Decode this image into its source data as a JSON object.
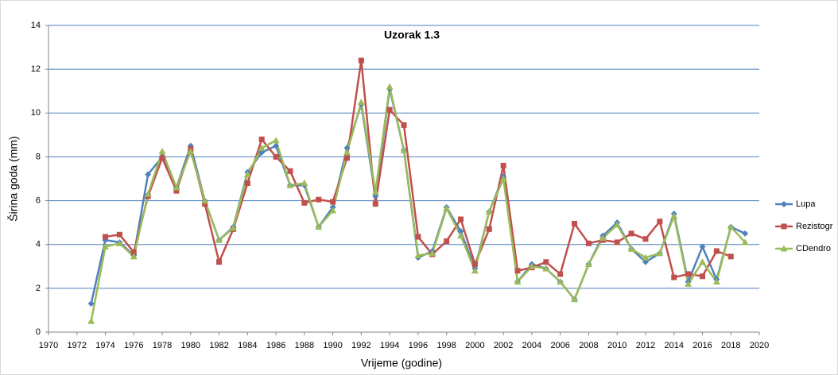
{
  "chart_data": {
    "type": "line",
    "title": "Uzorak 1.3",
    "x_label": "Vrijeme (godine)",
    "y_label": "Širina goda (mm)",
    "x": [
      1973,
      1974,
      1975,
      1976,
      1977,
      1978,
      1979,
      1980,
      1981,
      1982,
      1983,
      1984,
      1985,
      1986,
      1987,
      1988,
      1989,
      1990,
      1991,
      1992,
      1993,
      1994,
      1995,
      1996,
      1997,
      1998,
      1999,
      2000,
      2001,
      2002,
      2003,
      2004,
      2005,
      2006,
      2007,
      2008,
      2009,
      2010,
      2011,
      2012,
      2013,
      2014,
      2015,
      2016,
      2017,
      2018,
      2019
    ],
    "series": [
      {
        "name": "Lupa",
        "color": "#4f81bd",
        "marker": "diamond",
        "values": [
          1.3,
          4.2,
          4.1,
          3.5,
          7.2,
          8.0,
          6.6,
          8.5,
          6.0,
          4.2,
          4.8,
          7.3,
          8.2,
          8.5,
          6.7,
          6.7,
          4.8,
          5.7,
          8.4,
          10.4,
          6.2,
          11.1,
          8.3,
          3.4,
          3.7,
          5.7,
          4.6,
          2.9,
          5.5,
          7.1,
          2.3,
          3.1,
          2.9,
          2.3,
          1.5,
          3.1,
          4.4,
          5.0,
          3.8,
          3.2,
          3.6,
          5.4,
          2.3,
          3.9,
          2.4,
          4.8,
          4.5
        ]
      },
      {
        "name": "Rezistogr",
        "color": "#c0504d",
        "marker": "square",
        "values": [
          null,
          4.35,
          4.45,
          3.65,
          6.2,
          7.95,
          6.45,
          8.35,
          5.85,
          3.2,
          4.7,
          6.8,
          8.8,
          8.0,
          7.35,
          5.9,
          6.05,
          5.95,
          7.95,
          12.4,
          5.85,
          10.15,
          9.45,
          4.35,
          3.55,
          4.15,
          5.15,
          3.1,
          4.7,
          7.6,
          2.8,
          2.95,
          3.2,
          2.65,
          4.95,
          4.05,
          4.2,
          4.1,
          4.5,
          4.25,
          5.05,
          2.5,
          2.65,
          2.55,
          3.7,
          3.45,
          null
        ]
      },
      {
        "name": "CDendro",
        "color": "#9bbb59",
        "marker": "triangle",
        "values": [
          0.5,
          3.9,
          4.05,
          3.45,
          6.3,
          8.25,
          6.6,
          8.25,
          6.0,
          4.2,
          4.75,
          7.2,
          8.4,
          8.75,
          6.7,
          6.8,
          4.8,
          5.55,
          8.2,
          10.5,
          6.4,
          11.2,
          8.3,
          3.5,
          3.6,
          5.65,
          4.4,
          2.8,
          5.5,
          7.0,
          2.3,
          3.0,
          2.9,
          2.3,
          1.5,
          3.1,
          4.3,
          4.9,
          3.8,
          3.4,
          3.6,
          5.3,
          2.2,
          3.2,
          2.3,
          4.8,
          4.1
        ]
      }
    ],
    "xlim": [
      1970,
      2020
    ],
    "xticks": [
      1970,
      1972,
      1974,
      1976,
      1978,
      1980,
      1982,
      1984,
      1986,
      1988,
      1990,
      1992,
      1994,
      1996,
      1998,
      2000,
      2002,
      2004,
      2006,
      2008,
      2010,
      2012,
      2014,
      2016,
      2018,
      2020
    ],
    "ylim": [
      0,
      14
    ],
    "yticks": [
      0,
      2,
      4,
      6,
      8,
      10,
      12,
      14
    ],
    "grid": true,
    "legend": "right"
  }
}
